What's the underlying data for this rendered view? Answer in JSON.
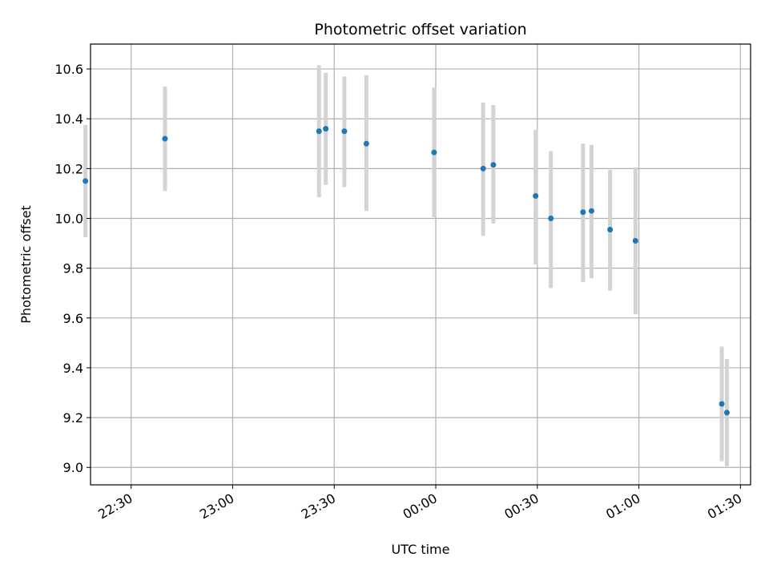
{
  "chart_data": {
    "type": "scatter",
    "title": "Photometric offset variation",
    "xlabel": "UTC time",
    "ylabel": "Photometric offset",
    "xlim": [
      "22:18",
      "01:33"
    ],
    "ylim": [
      8.93,
      10.7
    ],
    "grid": true,
    "x_ticks": [
      "22:30",
      "23:00",
      "23:30",
      "00:00",
      "00:30",
      "01:00",
      "01:30"
    ],
    "y_ticks": [
      9.0,
      9.2,
      9.4,
      9.6,
      9.8,
      10.0,
      10.2,
      10.4,
      10.6
    ],
    "marker_color": "#1f77b4",
    "errorbar_color": "#d3d3d3",
    "points": [
      {
        "t": "22:16.5",
        "y": 10.15,
        "low": 9.925,
        "high": 10.375
      },
      {
        "t": "22:40",
        "y": 10.32,
        "low": 10.11,
        "high": 10.53
      },
      {
        "t": "23:25.5",
        "y": 10.35,
        "low": 10.085,
        "high": 10.615
      },
      {
        "t": "23:27.5",
        "y": 10.36,
        "low": 10.135,
        "high": 10.585
      },
      {
        "t": "23:33",
        "y": 10.35,
        "low": 10.125,
        "high": 10.57
      },
      {
        "t": "23:39.5",
        "y": 10.3,
        "low": 10.03,
        "high": 10.575
      },
      {
        "t": "23:59.5",
        "y": 10.265,
        "low": 10.005,
        "high": 10.525
      },
      {
        "t": "00:14",
        "y": 10.2,
        "low": 9.93,
        "high": 10.465
      },
      {
        "t": "00:17",
        "y": 10.215,
        "low": 9.98,
        "high": 10.455
      },
      {
        "t": "00:29.5",
        "y": 10.09,
        "low": 9.815,
        "high": 10.355
      },
      {
        "t": "00:34",
        "y": 10.0,
        "low": 9.72,
        "high": 10.27
      },
      {
        "t": "00:43.5",
        "y": 10.025,
        "low": 9.745,
        "high": 10.3
      },
      {
        "t": "00:46",
        "y": 10.03,
        "low": 9.76,
        "high": 10.295
      },
      {
        "t": "00:51.5",
        "y": 9.955,
        "low": 9.71,
        "high": 10.195
      },
      {
        "t": "00:59",
        "y": 9.91,
        "low": 9.615,
        "high": 10.205
      },
      {
        "t": "01:24.5",
        "y": 9.255,
        "low": 9.025,
        "high": 9.485
      },
      {
        "t": "01:26",
        "y": 9.22,
        "low": 9.005,
        "high": 9.435
      }
    ]
  }
}
